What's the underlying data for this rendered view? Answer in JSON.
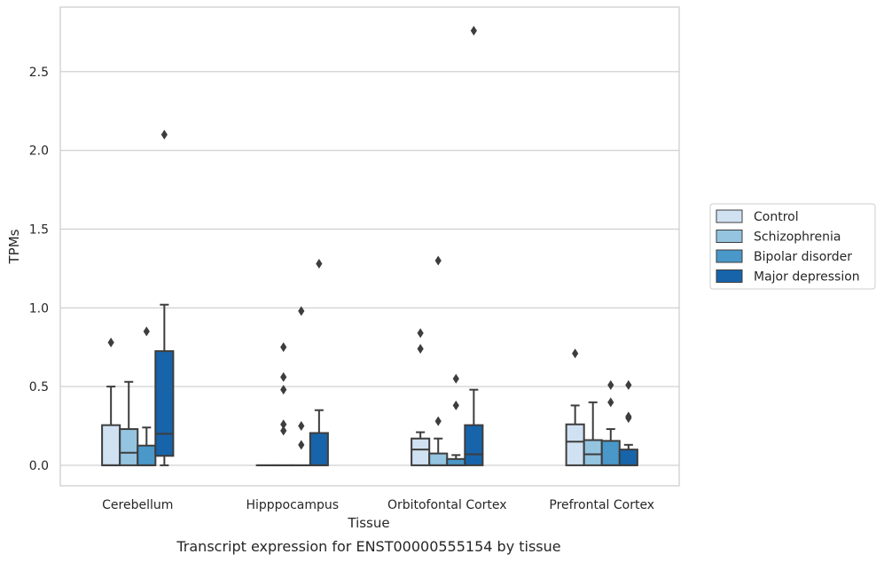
{
  "chart_data": {
    "type": "boxplot",
    "xlabel": "Tissue",
    "ylabel": "TPMs",
    "caption": "Transcript expression for ENST00000555154 by tissue",
    "ylim": [
      -0.13,
      2.91
    ],
    "yticks": [
      0.0,
      0.5,
      1.0,
      1.5,
      2.0,
      2.5
    ],
    "ytick_labels": [
      "0.0",
      "0.5",
      "1.0",
      "1.5",
      "2.0",
      "2.5"
    ],
    "grid": "horizontal",
    "legend_position": "right",
    "categories": [
      "Cerebellum",
      "Hipppocampus",
      "Orbitofontal Cortex",
      "Prefrontal Cortex"
    ],
    "series": [
      {
        "name": "Control",
        "color": "#d0e1f2",
        "boxes": [
          {
            "q1": 0.0,
            "median": 0.0,
            "q3": 0.255,
            "whisker_low": 0.0,
            "whisker_high": 0.5,
            "outliers": [
              0.78
            ]
          },
          {
            "q1": 0.0,
            "median": 0.0,
            "q3": 0.0,
            "whisker_low": 0.0,
            "whisker_high": 0.0,
            "outliers": []
          },
          {
            "q1": 0.0,
            "median": 0.1,
            "q3": 0.17,
            "whisker_low": 0.0,
            "whisker_high": 0.21,
            "outliers": [
              0.74,
              0.84
            ]
          },
          {
            "q1": 0.0,
            "median": 0.15,
            "q3": 0.26,
            "whisker_low": 0.0,
            "whisker_high": 0.38,
            "outliers": [
              0.71
            ]
          }
        ]
      },
      {
        "name": "Schizophrenia",
        "color": "#94c4df",
        "boxes": [
          {
            "q1": 0.0,
            "median": 0.08,
            "q3": 0.23,
            "whisker_low": 0.0,
            "whisker_high": 0.53,
            "outliers": []
          },
          {
            "q1": 0.0,
            "median": 0.0,
            "q3": 0.0,
            "whisker_low": 0.0,
            "whisker_high": 0.0,
            "outliers": [
              0.22,
              0.26,
              0.48,
              0.56,
              0.75
            ]
          },
          {
            "q1": 0.0,
            "median": 0.0,
            "q3": 0.075,
            "whisker_low": 0.0,
            "whisker_high": 0.17,
            "outliers": [
              0.28,
              1.3
            ]
          },
          {
            "q1": 0.0,
            "median": 0.07,
            "q3": 0.16,
            "whisker_low": 0.0,
            "whisker_high": 0.4,
            "outliers": []
          }
        ]
      },
      {
        "name": "Bipolar disorder",
        "color": "#4a98c9",
        "boxes": [
          {
            "q1": 0.0,
            "median": 0.0,
            "q3": 0.125,
            "whisker_low": 0.0,
            "whisker_high": 0.24,
            "outliers": [
              0.85
            ]
          },
          {
            "q1": 0.0,
            "median": 0.0,
            "q3": 0.0,
            "whisker_low": 0.0,
            "whisker_high": 0.0,
            "outliers": [
              0.13,
              0.25,
              0.98
            ]
          },
          {
            "q1": 0.0,
            "median": 0.0,
            "q3": 0.04,
            "whisker_low": 0.0,
            "whisker_high": 0.065,
            "outliers": [
              0.38,
              0.55
            ]
          },
          {
            "q1": 0.0,
            "median": 0.0,
            "q3": 0.155,
            "whisker_low": 0.0,
            "whisker_high": 0.23,
            "outliers": [
              0.4,
              0.51
            ]
          }
        ]
      },
      {
        "name": "Major depression",
        "color": "#1764ab",
        "boxes": [
          {
            "q1": 0.06,
            "median": 0.2,
            "q3": 0.725,
            "whisker_low": 0.0,
            "whisker_high": 1.02,
            "outliers": [
              2.1
            ]
          },
          {
            "q1": 0.0,
            "median": 0.0,
            "q3": 0.205,
            "whisker_low": 0.0,
            "whisker_high": 0.35,
            "outliers": [
              1.28
            ]
          },
          {
            "q1": 0.0,
            "median": 0.07,
            "q3": 0.255,
            "whisker_low": 0.0,
            "whisker_high": 0.48,
            "outliers": [
              2.76
            ]
          },
          {
            "q1": 0.0,
            "median": 0.0,
            "q3": 0.1,
            "whisker_low": 0.0,
            "whisker_high": 0.13,
            "outliers": [
              0.3,
              0.31,
              0.51
            ]
          }
        ]
      }
    ]
  }
}
